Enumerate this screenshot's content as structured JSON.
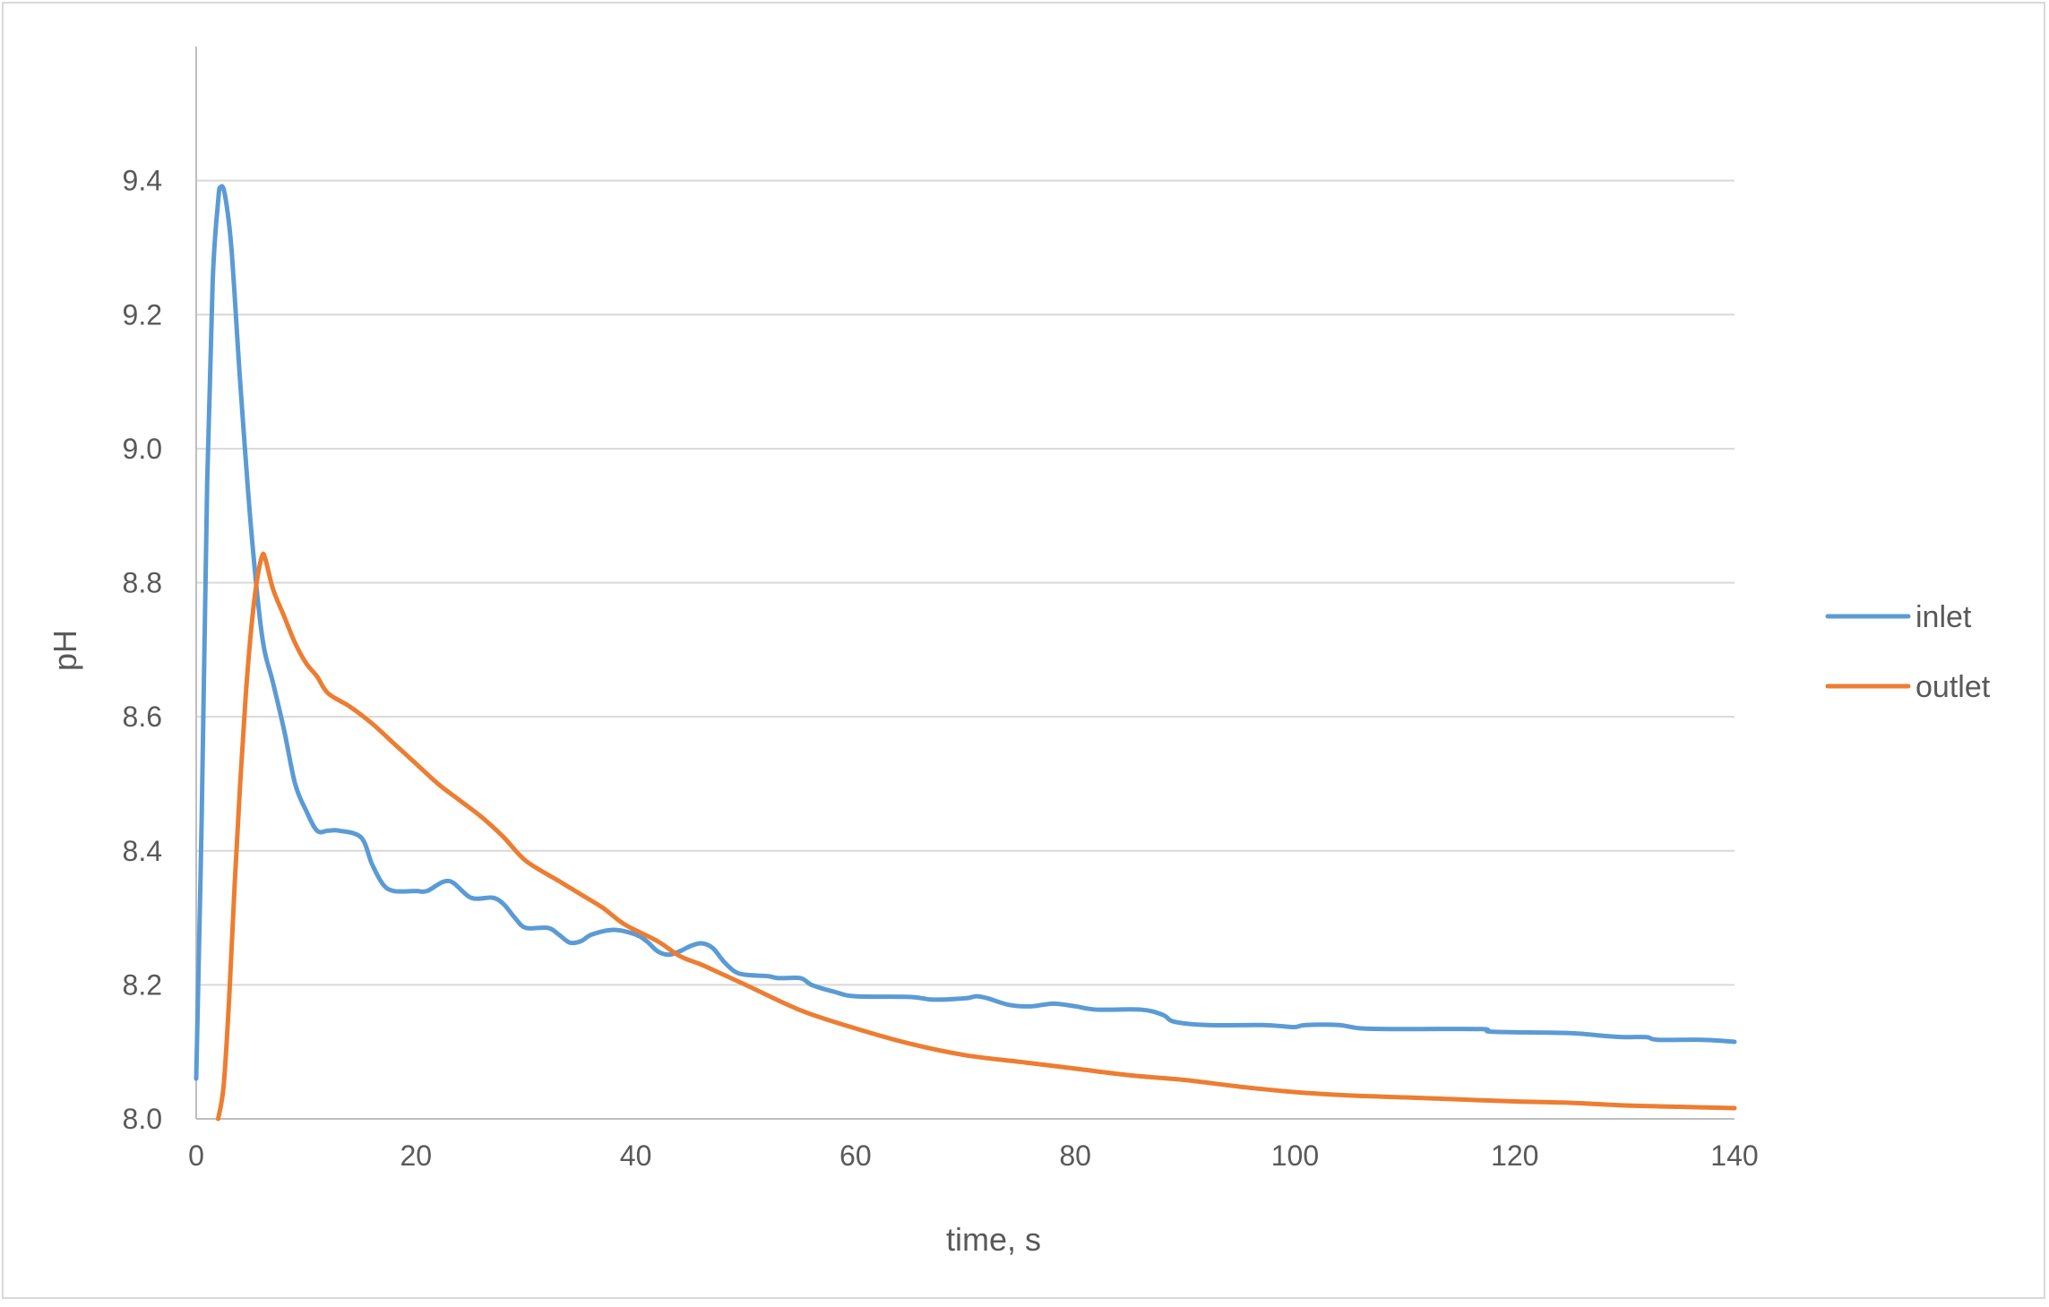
{
  "chart_data": {
    "type": "line",
    "title": "",
    "xlabel": "time, s",
    "ylabel": "pH",
    "xlim": [
      0,
      140
    ],
    "ylim": [
      8.0,
      9.6
    ],
    "xticks": [
      0,
      20,
      40,
      60,
      80,
      100,
      120,
      140
    ],
    "xtick_labels": [
      "0",
      "20",
      "40",
      "60",
      "80",
      "100",
      "120",
      "140"
    ],
    "yticks": [
      8.0,
      8.2,
      8.4,
      8.6,
      8.8,
      9.0,
      9.2,
      9.4
    ],
    "ytick_labels": [
      "8.0",
      "8.2",
      "8.4",
      "8.6",
      "8.8",
      "9.0",
      "9.2",
      "9.4"
    ],
    "grid": true,
    "legend_position": "right",
    "series": [
      {
        "name": "inlet",
        "color": "#5b9bd5",
        "points": [
          [
            0,
            8.06
          ],
          [
            0.5,
            8.45
          ],
          [
            1.0,
            8.95
          ],
          [
            1.5,
            9.25
          ],
          [
            2.0,
            9.37
          ],
          [
            2.2,
            9.39
          ],
          [
            2.6,
            9.38
          ],
          [
            3.2,
            9.3
          ],
          [
            4.0,
            9.1
          ],
          [
            5.0,
            8.88
          ],
          [
            6.0,
            8.72
          ],
          [
            7.0,
            8.65
          ],
          [
            8.0,
            8.58
          ],
          [
            9.0,
            8.5
          ],
          [
            10.0,
            8.46
          ],
          [
            11.0,
            8.43
          ],
          [
            12.0,
            8.43
          ],
          [
            13.0,
            8.43
          ],
          [
            15.0,
            8.42
          ],
          [
            16.0,
            8.38
          ],
          [
            17.0,
            8.35
          ],
          [
            18.0,
            8.34
          ],
          [
            20.0,
            8.34
          ],
          [
            21.0,
            8.34
          ],
          [
            23.0,
            8.355
          ],
          [
            25.0,
            8.33
          ],
          [
            27.0,
            8.33
          ],
          [
            28.0,
            8.32
          ],
          [
            29.0,
            8.3
          ],
          [
            30.0,
            8.285
          ],
          [
            32.0,
            8.285
          ],
          [
            33.0,
            8.275
          ],
          [
            34.0,
            8.263
          ],
          [
            35.0,
            8.265
          ],
          [
            36.0,
            8.275
          ],
          [
            38.0,
            8.282
          ],
          [
            40.0,
            8.275
          ],
          [
            41.0,
            8.265
          ],
          [
            42.0,
            8.25
          ],
          [
            43.0,
            8.245
          ],
          [
            44.0,
            8.25
          ],
          [
            45.0,
            8.258
          ],
          [
            46.0,
            8.262
          ],
          [
            47.0,
            8.255
          ],
          [
            48.0,
            8.235
          ],
          [
            49.0,
            8.22
          ],
          [
            50.0,
            8.215
          ],
          [
            52.0,
            8.213
          ],
          [
            53.0,
            8.21
          ],
          [
            55.0,
            8.21
          ],
          [
            56.0,
            8.2
          ],
          [
            58.0,
            8.19
          ],
          [
            60.0,
            8.183
          ],
          [
            65.0,
            8.182
          ],
          [
            67.0,
            8.178
          ],
          [
            70.0,
            8.18
          ],
          [
            71.0,
            8.183
          ],
          [
            72.0,
            8.18
          ],
          [
            74.0,
            8.17
          ],
          [
            76.0,
            8.168
          ],
          [
            78.0,
            8.172
          ],
          [
            80.0,
            8.168
          ],
          [
            82.0,
            8.163
          ],
          [
            86.0,
            8.163
          ],
          [
            88.0,
            8.155
          ],
          [
            89.0,
            8.145
          ],
          [
            92.0,
            8.14
          ],
          [
            97.0,
            8.14
          ],
          [
            99.0,
            8.138
          ],
          [
            100.0,
            8.137
          ],
          [
            101.0,
            8.14
          ],
          [
            104.0,
            8.14
          ],
          [
            106.0,
            8.135
          ],
          [
            110.0,
            8.134
          ],
          [
            117.0,
            8.134
          ],
          [
            118.0,
            8.13
          ],
          [
            125.0,
            8.128
          ],
          [
            128.0,
            8.124
          ],
          [
            130.0,
            8.122
          ],
          [
            132.0,
            8.122
          ],
          [
            133.0,
            8.118
          ],
          [
            137.0,
            8.118
          ],
          [
            140.0,
            8.115
          ]
        ]
      },
      {
        "name": "outlet",
        "color": "#ed7d31",
        "points": [
          [
            2.0,
            8.0
          ],
          [
            2.5,
            8.05
          ],
          [
            3.0,
            8.18
          ],
          [
            3.5,
            8.35
          ],
          [
            4.0,
            8.5
          ],
          [
            4.5,
            8.63
          ],
          [
            5.0,
            8.73
          ],
          [
            5.5,
            8.8
          ],
          [
            6.0,
            8.84
          ],
          [
            6.3,
            8.835
          ],
          [
            7.0,
            8.79
          ],
          [
            8.0,
            8.75
          ],
          [
            9.0,
            8.71
          ],
          [
            10.0,
            8.68
          ],
          [
            11.0,
            8.66
          ],
          [
            12.0,
            8.635
          ],
          [
            14.0,
            8.615
          ],
          [
            16.0,
            8.59
          ],
          [
            18.0,
            8.56
          ],
          [
            20.0,
            8.53
          ],
          [
            22.0,
            8.5
          ],
          [
            24.0,
            8.475
          ],
          [
            26.0,
            8.45
          ],
          [
            28.0,
            8.42
          ],
          [
            30.0,
            8.385
          ],
          [
            33.0,
            8.355
          ],
          [
            35.0,
            8.335
          ],
          [
            37.0,
            8.315
          ],
          [
            39.0,
            8.29
          ],
          [
            42.0,
            8.265
          ],
          [
            44.0,
            8.243
          ],
          [
            46.0,
            8.23
          ],
          [
            48.0,
            8.215
          ],
          [
            50.0,
            8.2
          ],
          [
            55.0,
            8.162
          ],
          [
            60.0,
            8.135
          ],
          [
            65.0,
            8.112
          ],
          [
            70.0,
            8.095
          ],
          [
            75.0,
            8.085
          ],
          [
            80.0,
            8.075
          ],
          [
            85.0,
            8.065
          ],
          [
            90.0,
            8.058
          ],
          [
            95.0,
            8.048
          ],
          [
            100.0,
            8.04
          ],
          [
            105.0,
            8.035
          ],
          [
            110.0,
            8.032
          ],
          [
            115.0,
            8.029
          ],
          [
            120.0,
            8.026
          ],
          [
            125.0,
            8.024
          ],
          [
            130.0,
            8.02
          ],
          [
            135.0,
            8.018
          ],
          [
            140.0,
            8.016
          ]
        ]
      }
    ]
  }
}
